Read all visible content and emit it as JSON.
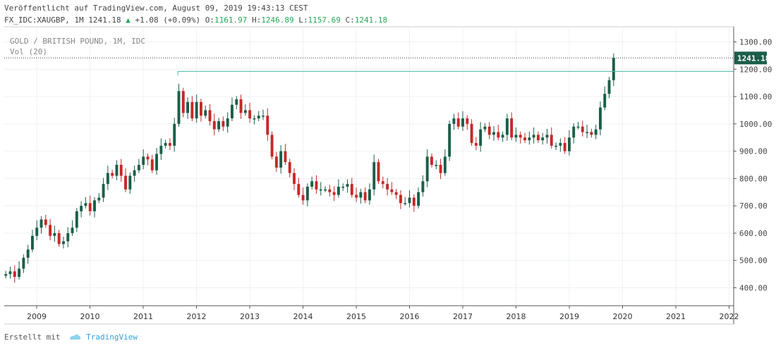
{
  "header": {
    "published": "Veröffentlicht auf TradingView.com, August 09, 2019 19:43:13 CEST",
    "symbol_line": "FX_IDC:XAUGBP, 1M 1241.18",
    "change": "+1.08 (+0.09%)",
    "o_label": "O:",
    "o_value": "1161.97",
    "h_label": "H:",
    "h_value": "1246.89",
    "l_label": "L:",
    "l_value": "1157.69",
    "c_label": "C:",
    "c_value": "1241.18"
  },
  "legend": {
    "series_name": "GOLD / BRITISH POUND, 1M, IDC",
    "volume": "Vol (20)"
  },
  "footer": {
    "created_with": "Erstellt mit",
    "brand": "TradingView"
  },
  "colors": {
    "up": "#1b5e4a",
    "down": "#c62828",
    "hline": "#4db6ac",
    "last_badge": "#1b5e4a",
    "grid": "#eef1f4"
  },
  "chart_data": {
    "type": "candlestick",
    "title": "GOLD / BRITISH POUND, 1M, IDC",
    "ylim": [
      330,
      1340
    ],
    "y_ticks": [
      "400.00",
      "500.00",
      "600.00",
      "700.00",
      "800.00",
      "900.00",
      "1000.00",
      "1100.00",
      "1200.00",
      "1300.00"
    ],
    "x_ticks": [
      "2009",
      "2010",
      "2011",
      "2012",
      "2013",
      "2014",
      "2015",
      "2016",
      "2017",
      "2018",
      "2019",
      "2020",
      "2021",
      "2022"
    ],
    "last_price": 1241.18,
    "last_price_label": "1241.18",
    "horizontal_level": 1192,
    "series_step": 0.0833,
    "series_start": 2008.42,
    "closes": [
      450,
      460,
      440,
      470,
      510,
      540,
      590,
      620,
      650,
      630,
      590,
      600,
      560,
      570,
      600,
      620,
      680,
      700,
      710,
      680,
      720,
      730,
      780,
      820,
      810,
      850,
      810,
      760,
      810,
      830,
      850,
      880,
      870,
      830,
      890,
      920,
      930,
      920,
      1000,
      1120,
      1040,
      1080,
      1020,
      1080,
      1030,
      1050,
      1010,
      980,
      1010,
      990,
      1020,
      1070,
      1090,
      1040,
      1050,
      1020,
      1020,
      1030,
      1030,
      960,
      880,
      840,
      900,
      860,
      820,
      780,
      740,
      720,
      770,
      790,
      760,
      760,
      760,
      750,
      740,
      770,
      770,
      780,
      740,
      730,
      750,
      720,
      760,
      860,
      790,
      780,
      760,
      750,
      740,
      710,
      710,
      730,
      700,
      750,
      790,
      880,
      850,
      850,
      820,
      880,
      1000,
      1020,
      990,
      1020,
      1000,
      930,
      920,
      980,
      990,
      960,
      970,
      950,
      960,
      1020,
      950,
      960,
      950,
      940,
      950,
      960,
      940,
      950,
      960,
      920,
      920,
      930,
      900,
      950,
      990,
      990,
      970,
      970,
      960,
      980,
      1060,
      1110,
      1160,
      1241
    ]
  }
}
